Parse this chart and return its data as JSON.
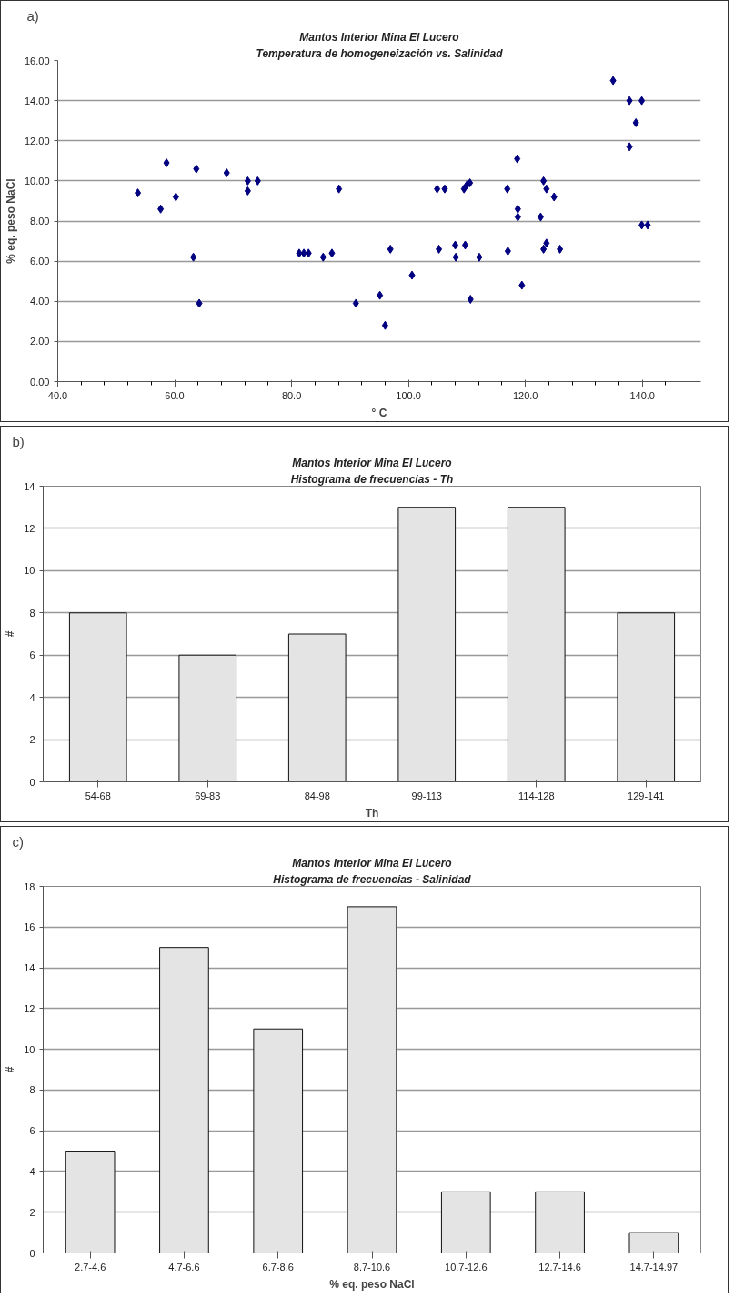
{
  "chart_data": [
    {
      "type": "scatter",
      "title": "Mantos Interior Mina El Lucero",
      "subtitle": "Temperatura de homogeneización vs. Salinidad",
      "xlabel": "° C",
      "ylabel": "% eq. peso NaCl",
      "annotations": [
        "a)"
      ],
      "marker": "diamond",
      "grid": "y",
      "color": "#000080",
      "x": [
        53.7,
        57.6,
        58.6,
        60.2,
        63.2,
        63.7,
        64.2,
        68.9,
        72.5,
        72.5,
        74.2,
        81.3,
        82.1,
        82.9,
        85.4,
        86.9,
        88.1,
        91.0,
        95.1,
        96.0,
        96.9,
        100.6,
        104.9,
        106.2,
        105.2,
        108.0,
        108.1,
        109.7,
        109.5,
        110.0,
        110.5,
        110.6,
        112.1,
        116.9,
        117.0,
        118.6,
        118.7,
        118.7,
        119.4,
        122.6,
        123.1,
        123.6,
        124.9,
        123.1,
        123.6,
        125.9,
        135.0,
        137.8,
        139.9,
        138.9,
        137.8,
        139.9,
        140.9
      ],
      "values": [
        9.4,
        8.6,
        10.9,
        9.2,
        6.2,
        10.6,
        3.9,
        10.4,
        10.0,
        9.5,
        10.0,
        6.4,
        6.4,
        6.4,
        6.2,
        6.4,
        9.6,
        3.9,
        4.3,
        2.8,
        6.6,
        5.3,
        9.6,
        9.6,
        6.6,
        6.8,
        6.2,
        6.8,
        9.6,
        9.8,
        9.9,
        4.1,
        6.2,
        9.6,
        6.5,
        11.1,
        8.6,
        8.2,
        4.8,
        8.2,
        10.0,
        9.6,
        9.2,
        6.6,
        6.9,
        6.6,
        15.0,
        14.0,
        14.0,
        12.9,
        11.7,
        7.8,
        7.8
      ],
      "xlim": [
        40,
        150
      ],
      "xticks": [
        {
          "value": 40,
          "label": "40.0"
        },
        {
          "value": 60,
          "label": "60.0"
        },
        {
          "value": 80,
          "label": "80.0"
        },
        {
          "value": 100,
          "label": "100.0"
        },
        {
          "value": 120,
          "label": "120.0"
        },
        {
          "value": 140,
          "label": "140.0"
        }
      ],
      "ylim": [
        0,
        16
      ],
      "yticks": [
        {
          "value": 0,
          "label": "0.00"
        },
        {
          "value": 2,
          "label": "2.00"
        },
        {
          "value": 4,
          "label": "4.00"
        },
        {
          "value": 6,
          "label": "6.00"
        },
        {
          "value": 8,
          "label": "8.00"
        },
        {
          "value": 10,
          "label": "10.00"
        },
        {
          "value": 12,
          "label": "12.00"
        },
        {
          "value": 14,
          "label": "14.00"
        },
        {
          "value": 16,
          "label": "16.00"
        }
      ]
    },
    {
      "type": "bar",
      "title": "Mantos Interior Mina El Lucero",
      "subtitle": "Histograma de frecuencias - Th",
      "xlabel": "Th",
      "ylabel": "#",
      "annotations": [
        "b)"
      ],
      "grid": "y",
      "color": "#e4e4e4",
      "categories": [
        "54-68",
        "69-83",
        "84-98",
        "99-113",
        "114-128",
        "129-141"
      ],
      "values": [
        8,
        6,
        7,
        13,
        13,
        8
      ],
      "ylim": [
        0,
        14
      ],
      "yticks": [
        0,
        2,
        4,
        6,
        8,
        10,
        12,
        14
      ]
    },
    {
      "type": "bar",
      "title": "Mantos Interior Mina El Lucero",
      "subtitle": "Histograma de frecuencias - Salinidad",
      "xlabel": "% eq. peso NaCl",
      "ylabel": "#",
      "annotations": [
        "c)"
      ],
      "grid": "y",
      "color": "#e4e4e4",
      "categories": [
        "2.7-4.6",
        "4.7-6.6",
        "6.7-8.6",
        "8.7-10.6",
        "10.7-12.6",
        "12.7-14.6",
        "14.7-14.97"
      ],
      "values": [
        5,
        15,
        11,
        17,
        3,
        3,
        1
      ],
      "ylim": [
        0,
        18
      ],
      "yticks": [
        0,
        2,
        4,
        6,
        8,
        10,
        12,
        14,
        16,
        18
      ]
    }
  ]
}
